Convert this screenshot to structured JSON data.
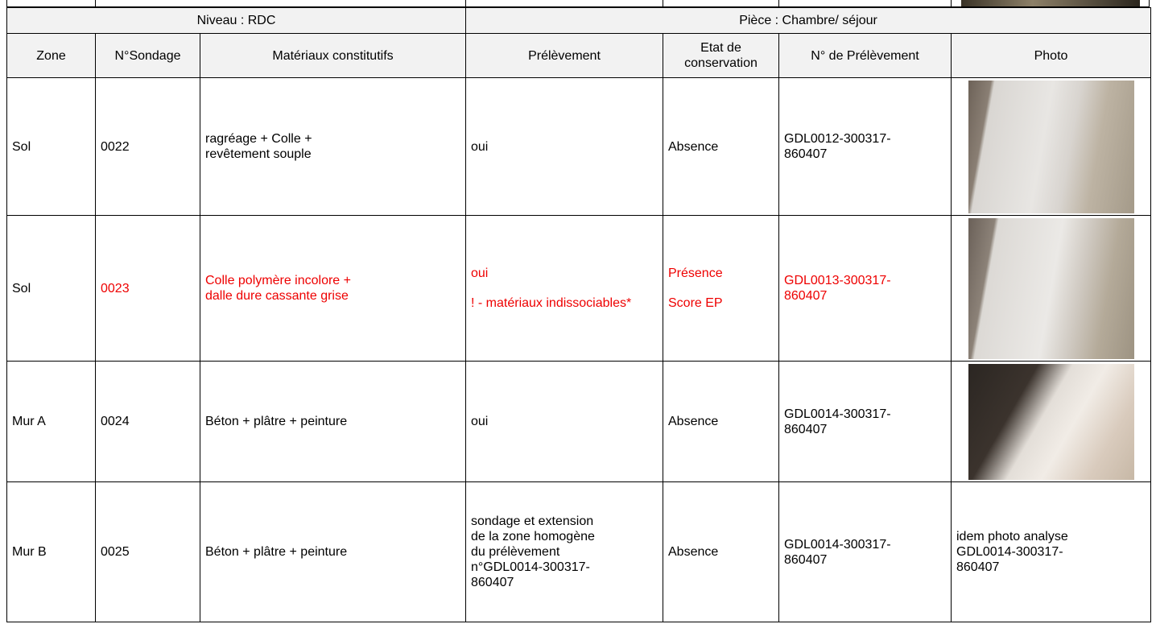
{
  "table": {
    "header": {
      "niveau": "Niveau : RDC",
      "piece": "Pièce : Chambre/ séjour"
    },
    "columns": [
      "Zone",
      "N°Sondage",
      "Matériaux constitutifs",
      "Prélèvement",
      "Etat de conservation",
      "N° de Prélèvement",
      "Photo"
    ],
    "rows": [
      {
        "zone": "Sol",
        "sondage": "0022",
        "materiaux": "ragréage + Colle + revêtement souple",
        "prelevement": [
          "oui"
        ],
        "etat": [
          "Absence"
        ],
        "numero": "GDL0012-300317-860407",
        "photo": null
      },
      {
        "zone": "Sol",
        "sondage": "0023",
        "materiaux": "Colle polymère incolore + dalle dure cassante grise",
        "prelevement": [
          "oui",
          "! - matériaux indissociables*"
        ],
        "etat": [
          "Présence",
          "Score EP"
        ],
        "numero": "GDL0013-300317-860407",
        "photo": null
      },
      {
        "zone": "Mur A",
        "sondage": "0024",
        "materiaux": "Béton + plâtre + peinture",
        "prelevement": [
          "oui"
        ],
        "etat": [
          "Absence"
        ],
        "numero": "GDL0014-300317-860407",
        "photo": null
      },
      {
        "zone": "Mur B",
        "sondage": "0025",
        "materiaux": "Béton + plâtre + peinture",
        "prelevement": [
          "sondage et extension de la zone homogène du prélèvement n°GDL0014-300317-860407"
        ],
        "etat": [
          "Absence"
        ],
        "numero": "GDL0014-300317-860407",
        "photo": "idem photo analyse GDL0014-300317-860407"
      }
    ]
  }
}
